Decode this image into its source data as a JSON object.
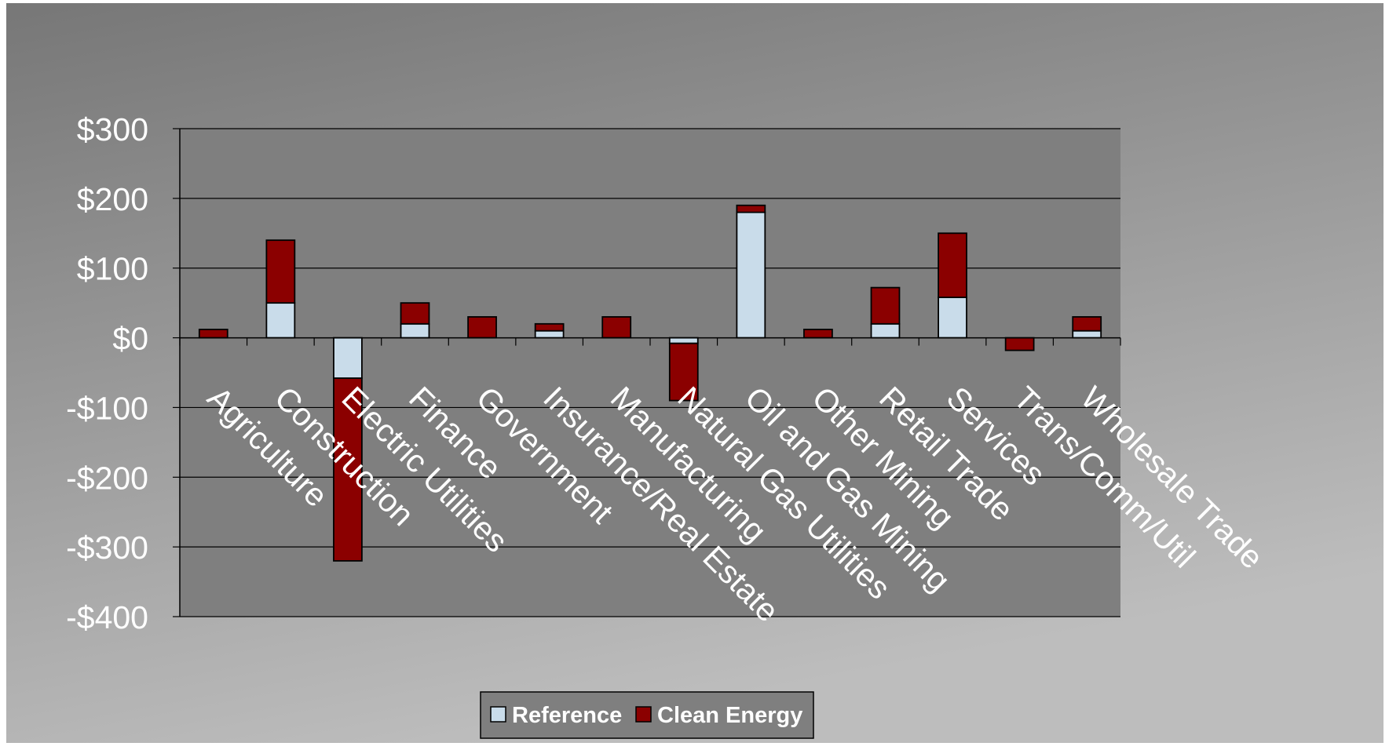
{
  "chart_data": {
    "type": "bar",
    "stacked": true,
    "title": "",
    "xlabel": "",
    "ylabel": "",
    "ylim": [
      -400,
      300
    ],
    "yticks": [
      300,
      200,
      100,
      0,
      -100,
      -200,
      -300,
      -400
    ],
    "ytick_labels": [
      "$300",
      "$200",
      "$100",
      "$0",
      "-$100",
      "-$200",
      "-$300",
      "-$400"
    ],
    "grid": true,
    "legend_position": "bottom",
    "categories": [
      "Agriculture",
      "Construction",
      "Electric Utilities",
      "Finance",
      "Government",
      "Insurance/Real Estate",
      "Manufacturing",
      "Natural Gas Utilities",
      "Oil and Gas Mining",
      "Other Mining",
      "Retail Trade",
      "Services",
      "Trans/Comm/Util",
      "Wholesale Trade"
    ],
    "series": [
      {
        "name": "Reference",
        "color": "#c9dcea",
        "values": [
          0,
          50,
          -58,
          20,
          0,
          10,
          0,
          -8,
          180,
          0,
          20,
          58,
          0,
          10
        ]
      },
      {
        "name": "Clean Energy",
        "color": "#8b0000",
        "values": [
          12,
          90,
          -262,
          30,
          30,
          10,
          30,
          -82,
          10,
          12,
          52,
          92,
          -18,
          20
        ]
      }
    ]
  }
}
